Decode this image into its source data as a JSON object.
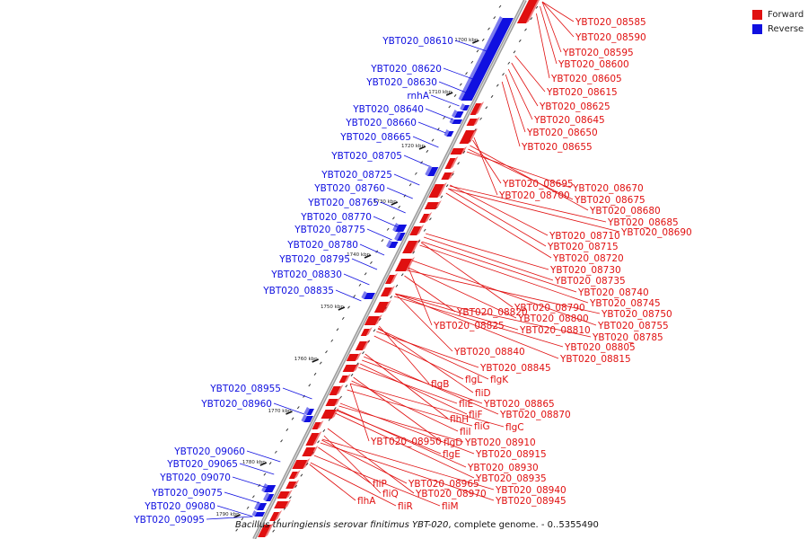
{
  "colors": {
    "forward": "#e01010",
    "reverse": "#1010e0",
    "backbone": "#a8a8a8"
  },
  "legend": [
    {
      "label": "Forward",
      "color": "#e01010"
    },
    {
      "label": "Reverse",
      "color": "#1010e0"
    }
  ],
  "caption": {
    "organism": "Bacillus thuringiensis serovar finitimus YBT-020",
    "rest": ", complete genome. - 0..5355490"
  },
  "ticks": [
    "1700 kbp",
    "1710 kbp",
    "1720 kbp",
    "1730 kbp",
    "1740 kbp",
    "1750 kbp",
    "1760 kbp",
    "1770 kbp",
    "1780 kbp",
    "1790 kbp"
  ],
  "reverse_labels": [
    "YBT020_08610",
    "YBT020_08620",
    "YBT020_08630",
    "rnhA",
    "YBT020_08640",
    "YBT020_08660",
    "YBT020_08665",
    "YBT020_08705",
    "YBT020_08725",
    "YBT020_08760",
    "YBT020_08765",
    "YBT020_08770",
    "YBT020_08775",
    "YBT020_08780",
    "YBT020_08795",
    "YBT020_08830",
    "YBT020_08835",
    "YBT020_08955",
    "YBT020_08960",
    "YBT020_09060",
    "YBT020_09065",
    "YBT020_09070",
    "YBT020_09075",
    "YBT020_09080",
    "YBT020_09095"
  ],
  "forward_labels": [
    "YBT020_08585",
    "YBT020_08590",
    "YBT020_08595",
    "YBT020_08600",
    "YBT020_08605",
    "YBT020_08615",
    "YBT020_08625",
    "YBT020_08645",
    "YBT020_08650",
    "YBT020_08655",
    "YBT020_08670",
    "YBT020_08695",
    "YBT020_08675",
    "YBT020_08700",
    "YBT020_08680",
    "YBT020_08685",
    "YBT020_08690",
    "YBT020_08710",
    "YBT020_08715",
    "YBT020_08720",
    "YBT020_08730",
    "YBT020_08735",
    "YBT020_08740",
    "YBT020_08745",
    "YBT020_08790",
    "YBT020_08820",
    "YBT020_08750",
    "YBT020_08800",
    "YBT020_08825",
    "YBT020_08755",
    "YBT020_08810",
    "YBT020_08785",
    "YBT020_08805",
    "YBT020_08840",
    "YBT020_08815",
    "YBT020_08845",
    "flgL",
    "flgK",
    "flgB",
    "fliD",
    "fliE",
    "YBT020_08865",
    "fliF",
    "YBT020_08870",
    "flhH",
    "fliG",
    "flgC",
    "fliI",
    "YBT020_08950",
    "flgD",
    "YBT020_08910",
    "flgE",
    "YBT020_08915",
    "YBT020_08930",
    "YBT020_08935",
    "fliP",
    "YBT020_08965",
    "YBT020_08940",
    "fliQ",
    "YBT020_08970",
    "flhA",
    "fliR",
    "fliM",
    "YBT020_08945"
  ]
}
